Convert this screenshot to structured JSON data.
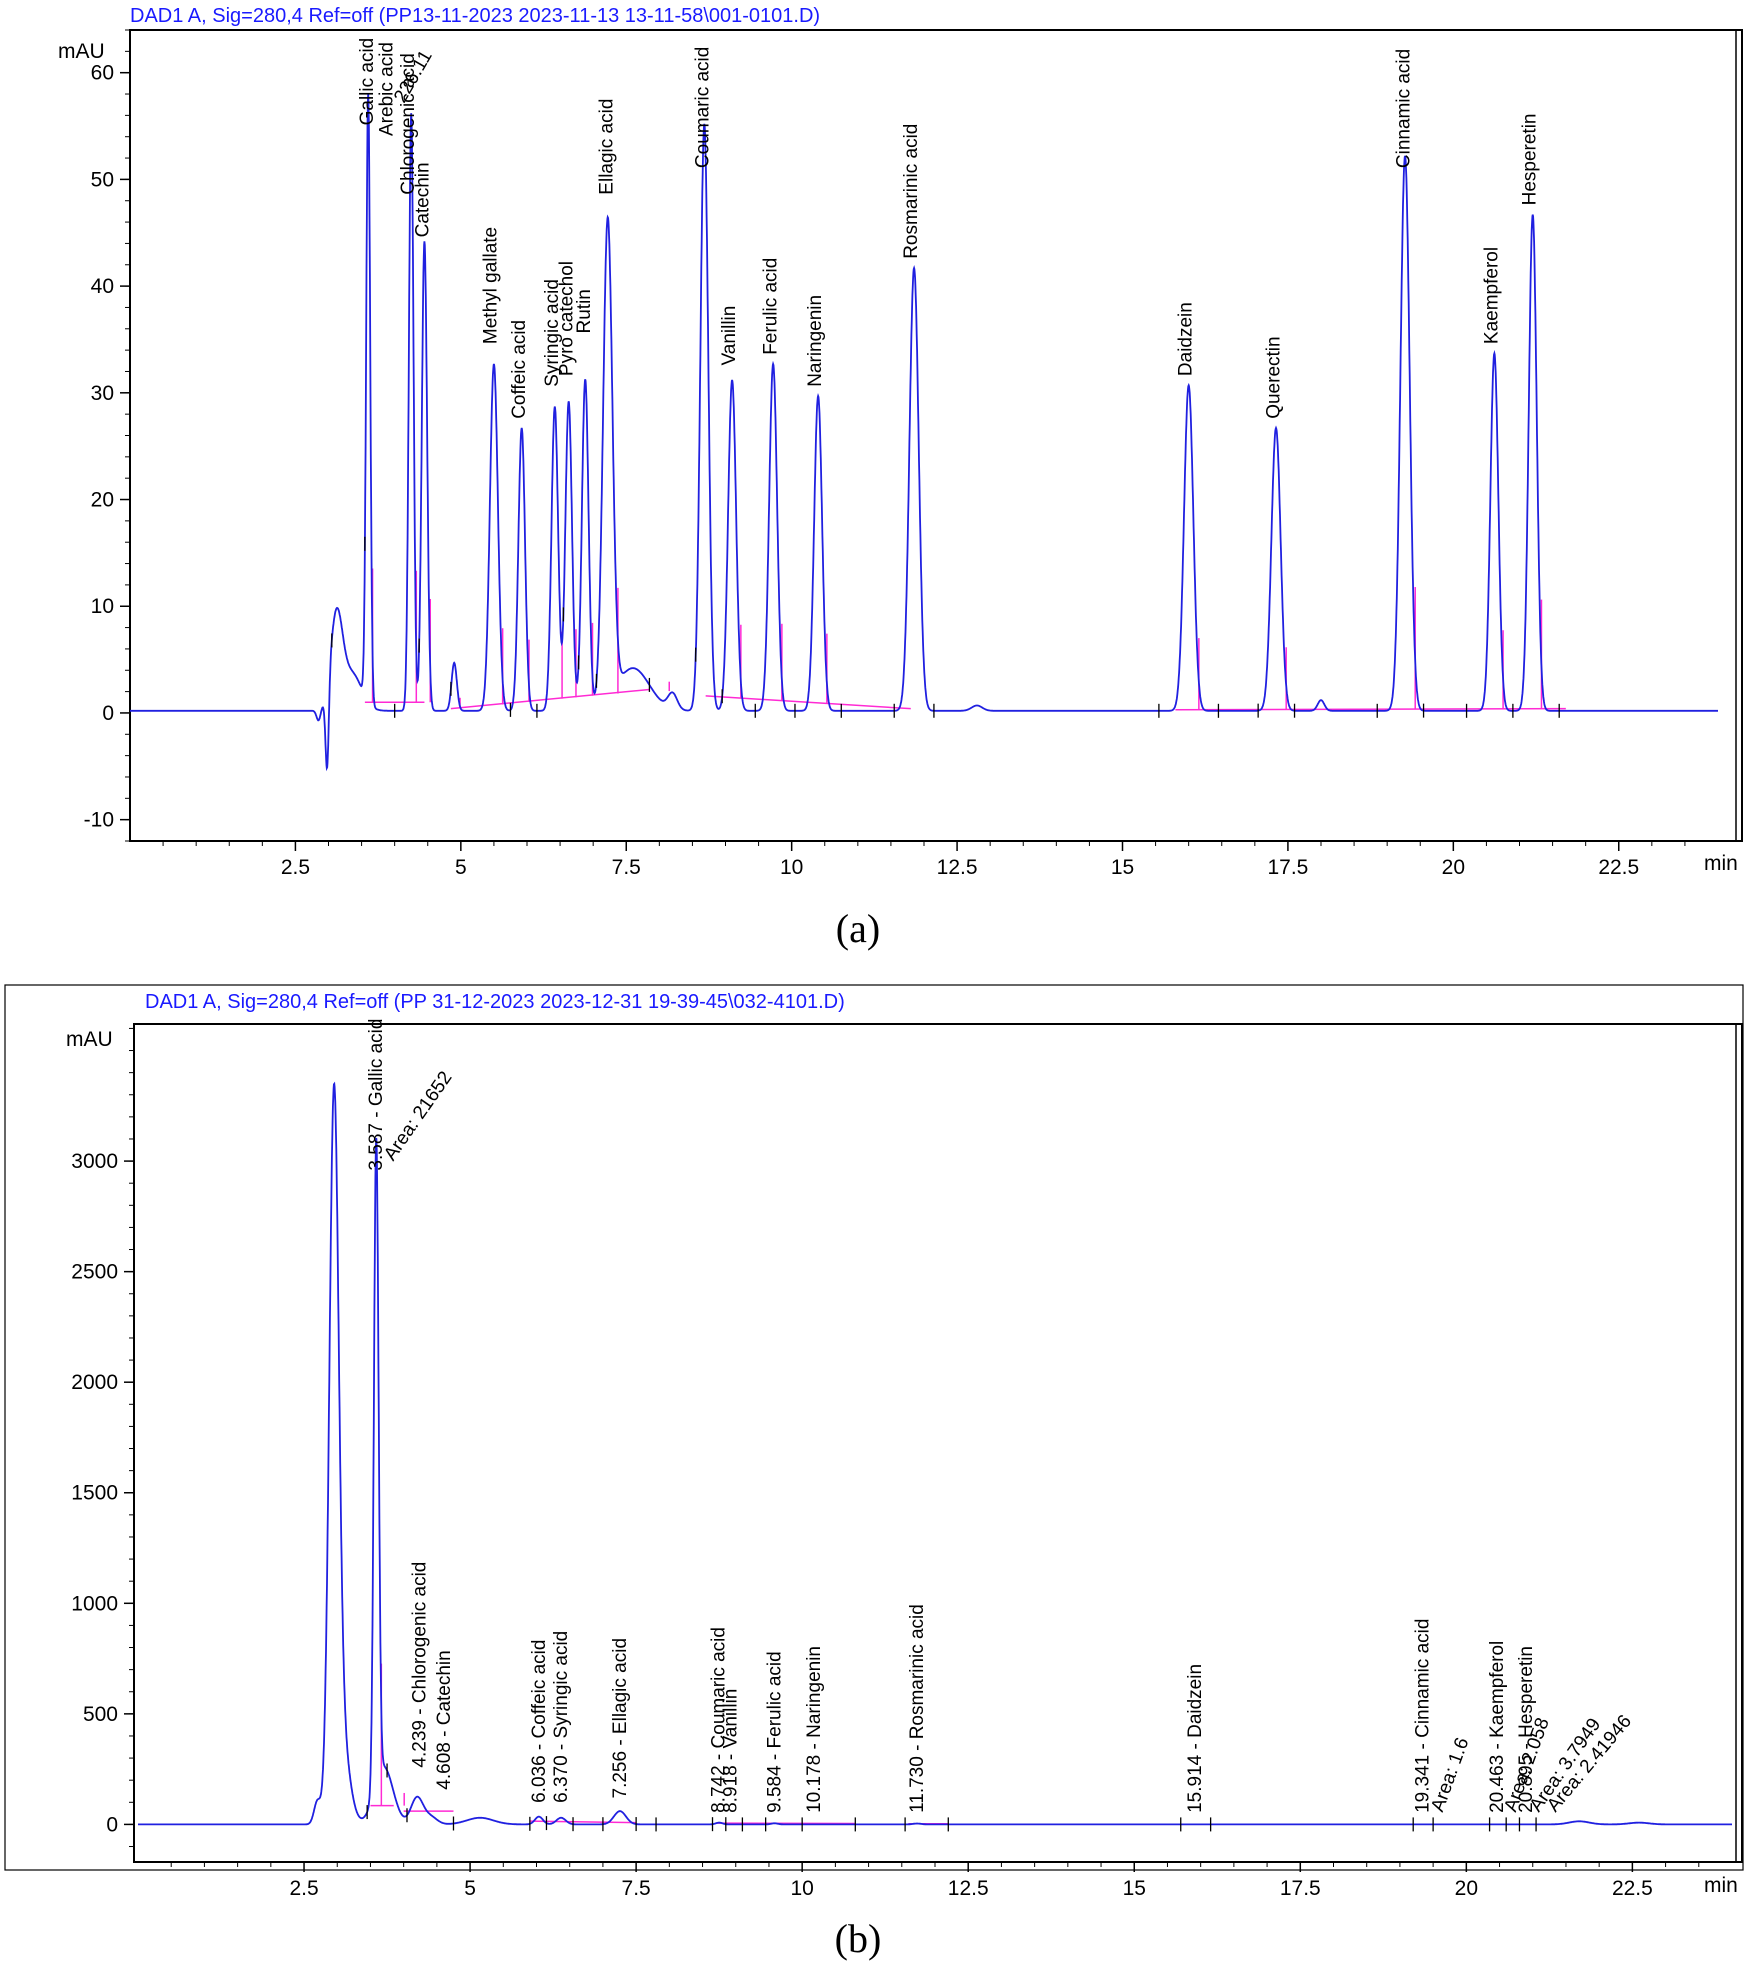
{
  "chart_data": [
    {
      "type": "line",
      "panel_caption": "(a)",
      "header": "DAD1 A, Sig=280,4 Ref=off (PP13-11-2023 2023-11-13 13-11-58\\001-0101.D)",
      "ylabel": "mAU",
      "xunit": "min",
      "xlim": [
        0,
        24
      ],
      "ylim": [
        -12,
        64
      ],
      "xticks": [
        2.5,
        5,
        7.5,
        10,
        12.5,
        15,
        17.5,
        20,
        22.5
      ],
      "xtick_labels": [
        "2.5",
        "5",
        "7.5",
        "10",
        "12.5",
        "15",
        "17.5",
        "20",
        "22.5"
      ],
      "yticks": [
        -10,
        0,
        10,
        20,
        30,
        40,
        50,
        60
      ],
      "ytick_labels": [
        "-10",
        "0",
        "10",
        "20",
        "30",
        "40",
        "50",
        "60"
      ],
      "baseline": 0.2,
      "baseline_segments": [
        [
          3.55,
          1.0,
          4.45,
          1.0
        ],
        [
          4.85,
          0.4,
          7.85,
          2.2
        ],
        [
          8.7,
          1.6,
          11.8,
          0.4
        ],
        [
          15.8,
          0.3,
          21.7,
          0.4
        ]
      ],
      "series": [
        {
          "peaks": [
            {
              "rt": 2.85,
              "height": -1.0,
              "width": 0.03
            },
            {
              "rt": 2.98,
              "height": -8.0,
              "width": 0.025
            },
            {
              "rt": 3.12,
              "height": 8.5,
              "width": 0.09
            },
            {
              "rt": 3.35,
              "height": 3.5,
              "width": 0.15
            },
            {
              "rt": 3.6,
              "height": 57.0,
              "width": 0.03
            },
            {
              "rt": 4.25,
              "height": 56.0,
              "width": 0.035
            },
            {
              "rt": 4.45,
              "height": 44.0,
              "width": 0.04
            },
            {
              "rt": 4.9,
              "height": 4.5,
              "width": 0.04
            },
            {
              "rt": 5.5,
              "height": 32.5,
              "width": 0.06
            },
            {
              "rt": 5.92,
              "height": 26.5,
              "width": 0.05
            },
            {
              "rt": 6.42,
              "height": 28.5,
              "width": 0.05
            },
            {
              "rt": 6.63,
              "height": 29.0,
              "width": 0.05
            },
            {
              "rt": 6.88,
              "height": 31.0,
              "width": 0.05
            },
            {
              "rt": 7.22,
              "height": 45.0,
              "width": 0.07
            },
            {
              "rt": 7.6,
              "height": 4.0,
              "width": 0.25
            },
            {
              "rt": 8.2,
              "height": 1.5,
              "width": 0.07
            },
            {
              "rt": 8.68,
              "height": 55.0,
              "width": 0.06
            },
            {
              "rt": 9.1,
              "height": 31.0,
              "width": 0.06
            },
            {
              "rt": 9.72,
              "height": 32.5,
              "width": 0.06
            },
            {
              "rt": 10.4,
              "height": 29.5,
              "width": 0.06
            },
            {
              "rt": 11.85,
              "height": 41.5,
              "width": 0.07
            },
            {
              "rt": 12.8,
              "height": 0.5,
              "width": 0.08
            },
            {
              "rt": 16.0,
              "height": 30.5,
              "width": 0.07
            },
            {
              "rt": 17.32,
              "height": 26.5,
              "width": 0.07
            },
            {
              "rt": 18.0,
              "height": 1.0,
              "width": 0.05
            },
            {
              "rt": 19.27,
              "height": 52.0,
              "width": 0.07
            },
            {
              "rt": 20.62,
              "height": 33.5,
              "width": 0.06
            },
            {
              "rt": 21.2,
              "height": 46.5,
              "width": 0.06
            }
          ]
        }
      ],
      "annotations": [
        {
          "text": "Gallic acid",
          "x": 3.58,
          "y": 54.5
        },
        {
          "text": "Arebic acid",
          "x": 3.88,
          "y": 53.5
        },
        {
          "text": "Chlorogenic acid",
          "x": 4.2,
          "y": 48
        },
        {
          "text": "Catechin",
          "x": 4.42,
          "y": 44
        },
        {
          "text": "Methyl gallate",
          "x": 5.45,
          "y": 34
        },
        {
          "text": "Coffeic acid",
          "x": 5.88,
          "y": 27
        },
        {
          "text": "Syringic acid",
          "x": 6.38,
          "y": 30
        },
        {
          "text": "Pyro catechol",
          "x": 6.6,
          "y": 31
        },
        {
          "text": "Rutin",
          "x": 6.86,
          "y": 35
        },
        {
          "text": "Ellagic acid",
          "x": 7.2,
          "y": 48
        },
        {
          "text": "Coumaric acid",
          "x": 8.65,
          "y": 50.5
        },
        {
          "text": "Vanillin",
          "x": 9.05,
          "y": 32
        },
        {
          "text": "Ferulic acid",
          "x": 9.68,
          "y": 33
        },
        {
          "text": "Naringenin",
          "x": 10.35,
          "y": 30
        },
        {
          "text": "Rosmarinic acid",
          "x": 11.8,
          "y": 42
        },
        {
          "text": "Daidzein",
          "x": 15.95,
          "y": 31
        },
        {
          "text": "Querectin",
          "x": 17.28,
          "y": 27
        },
        {
          "text": "Cinnamic acid",
          "x": 19.25,
          "y": 50.5
        },
        {
          "text": "Kaempferol",
          "x": 20.58,
          "y": 34
        },
        {
          "text": "Hesperetin",
          "x": 21.15,
          "y": 47
        },
        {
          "text": "226.11",
          "x": 4.05,
          "y": 56.5,
          "angle": -60
        }
      ],
      "markers": [
        3.05,
        3.55,
        4.0,
        4.37,
        4.85,
        5.75,
        6.15,
        6.55,
        6.78,
        7.05,
        7.85,
        8.55,
        8.95,
        9.45,
        10.05,
        10.75,
        11.55,
        12.15,
        15.55,
        16.45,
        17.05,
        17.6,
        18.85,
        19.55,
        20.2,
        20.9,
        21.6
      ]
    },
    {
      "type": "line",
      "panel_caption": "(b)",
      "header": "DAD1 A, Sig=280,4 Ref=off (PP 31-12-2023 2023-12-31 19-39-45\\032-4101.D)",
      "ylabel": "mAU",
      "xunit": "min",
      "xlim": [
        0,
        24
      ],
      "ylim": [
        -170,
        3620
      ],
      "xticks": [
        2.5,
        5,
        7.5,
        10,
        12.5,
        15,
        17.5,
        20,
        22.5
      ],
      "xtick_labels": [
        "2.5",
        "5",
        "7.5",
        "10",
        "12.5",
        "15",
        "17.5",
        "20",
        "22.5"
      ],
      "yticks": [
        0,
        500,
        1000,
        1500,
        2000,
        2500,
        3000
      ],
      "ytick_labels": [
        "0",
        "500",
        "1000",
        "1500",
        "2000",
        "2500",
        "3000"
      ],
      "baseline": 0,
      "baseline_segments": [
        [
          3.5,
          85,
          3.85,
          85
        ],
        [
          4.0,
          60,
          4.75,
          60
        ],
        [
          5.9,
          15,
          7.5,
          8
        ],
        [
          8.7,
          6,
          10.8,
          4
        ],
        [
          11.6,
          3,
          12.2,
          3
        ]
      ],
      "series": [
        {
          "peaks": [
            {
              "rt": 2.7,
              "height": 100,
              "width": 0.05
            },
            {
              "rt": 2.95,
              "height": 3050,
              "width": 0.07
            },
            {
              "rt": 3.05,
              "height": 420,
              "width": 0.12
            },
            {
              "rt": 3.587,
              "height": 2920,
              "width": 0.035
            },
            {
              "rt": 3.7,
              "height": 260,
              "width": 0.14
            },
            {
              "rt": 4.2,
              "height": 120,
              "width": 0.09
            },
            {
              "rt": 4.4,
              "height": 35,
              "width": 0.1
            },
            {
              "rt": 5.15,
              "height": 30,
              "width": 0.2
            },
            {
              "rt": 6.036,
              "height": 35,
              "width": 0.06
            },
            {
              "rt": 6.37,
              "height": 30,
              "width": 0.07
            },
            {
              "rt": 7.256,
              "height": 60,
              "width": 0.09
            },
            {
              "rt": 8.75,
              "height": 8,
              "width": 0.05
            },
            {
              "rt": 9.584,
              "height": 5,
              "width": 0.05
            },
            {
              "rt": 11.73,
              "height": 4,
              "width": 0.06
            },
            {
              "rt": 21.7,
              "height": 14,
              "width": 0.15
            },
            {
              "rt": 22.6,
              "height": 8,
              "width": 0.15
            }
          ]
        }
      ],
      "annotations": [
        {
          "text": "3.587 - Gallic acid",
          "x": 3.587,
          "y": 2930
        },
        {
          "text": "Area: 21652",
          "x": 3.75,
          "y": 2970,
          "angle": -55
        },
        {
          "text": "4.239 - Chlorogenic acid",
          "x": 4.239,
          "y": 230
        },
        {
          "text": "4.608 - Catechin",
          "x": 4.608,
          "y": 130
        },
        {
          "text": "6.036 - Coffeic acid",
          "x": 6.036,
          "y": 70
        },
        {
          "text": "6.370 - Syringic acid",
          "x": 6.37,
          "y": 70
        },
        {
          "text": "7.256 - Ellagic acid",
          "x": 7.256,
          "y": 90
        },
        {
          "text": "8.742 - Coumaric acid",
          "x": 8.742,
          "y": 25
        },
        {
          "text": "8.918 - Vanillin",
          "x": 8.918,
          "y": 25
        },
        {
          "text": "9.584 - Ferulic acid",
          "x": 9.584,
          "y": 25
        },
        {
          "text": "10.178 - Naringenin",
          "x": 10.178,
          "y": 25
        },
        {
          "text": "11.730 - Rosmarinic acid",
          "x": 11.73,
          "y": 25
        },
        {
          "text": "15.914 - Daidzein",
          "x": 15.914,
          "y": 25
        },
        {
          "text": "19.341 - Cinnamic acid",
          "x": 19.341,
          "y": 25
        },
        {
          "text": "Area: 1.6",
          "x": 19.55,
          "y": 25,
          "angle": -70
        },
        {
          "text": "20.463 - Kaempferol",
          "x": 20.463,
          "y": 25
        },
        {
          "text": "Area: 2.058",
          "x": 20.65,
          "y": 25,
          "angle": -70
        },
        {
          "text": "20.895 - Hesperetin",
          "x": 20.895,
          "y": 25
        },
        {
          "text": "Area: 3.7949",
          "x": 21.0,
          "y": 25,
          "angle": -55
        },
        {
          "text": "Area: 2.41946",
          "x": 21.25,
          "y": 25,
          "angle": -50
        }
      ],
      "markers": [
        3.45,
        3.75,
        4.05,
        4.75,
        5.9,
        6.15,
        6.55,
        7.0,
        7.5,
        7.8,
        8.65,
        8.85,
        9.1,
        9.45,
        10.0,
        10.8,
        11.55,
        12.2,
        15.7,
        16.15,
        19.2,
        19.5,
        20.35,
        20.6,
        20.8,
        21.05
      ]
    }
  ]
}
